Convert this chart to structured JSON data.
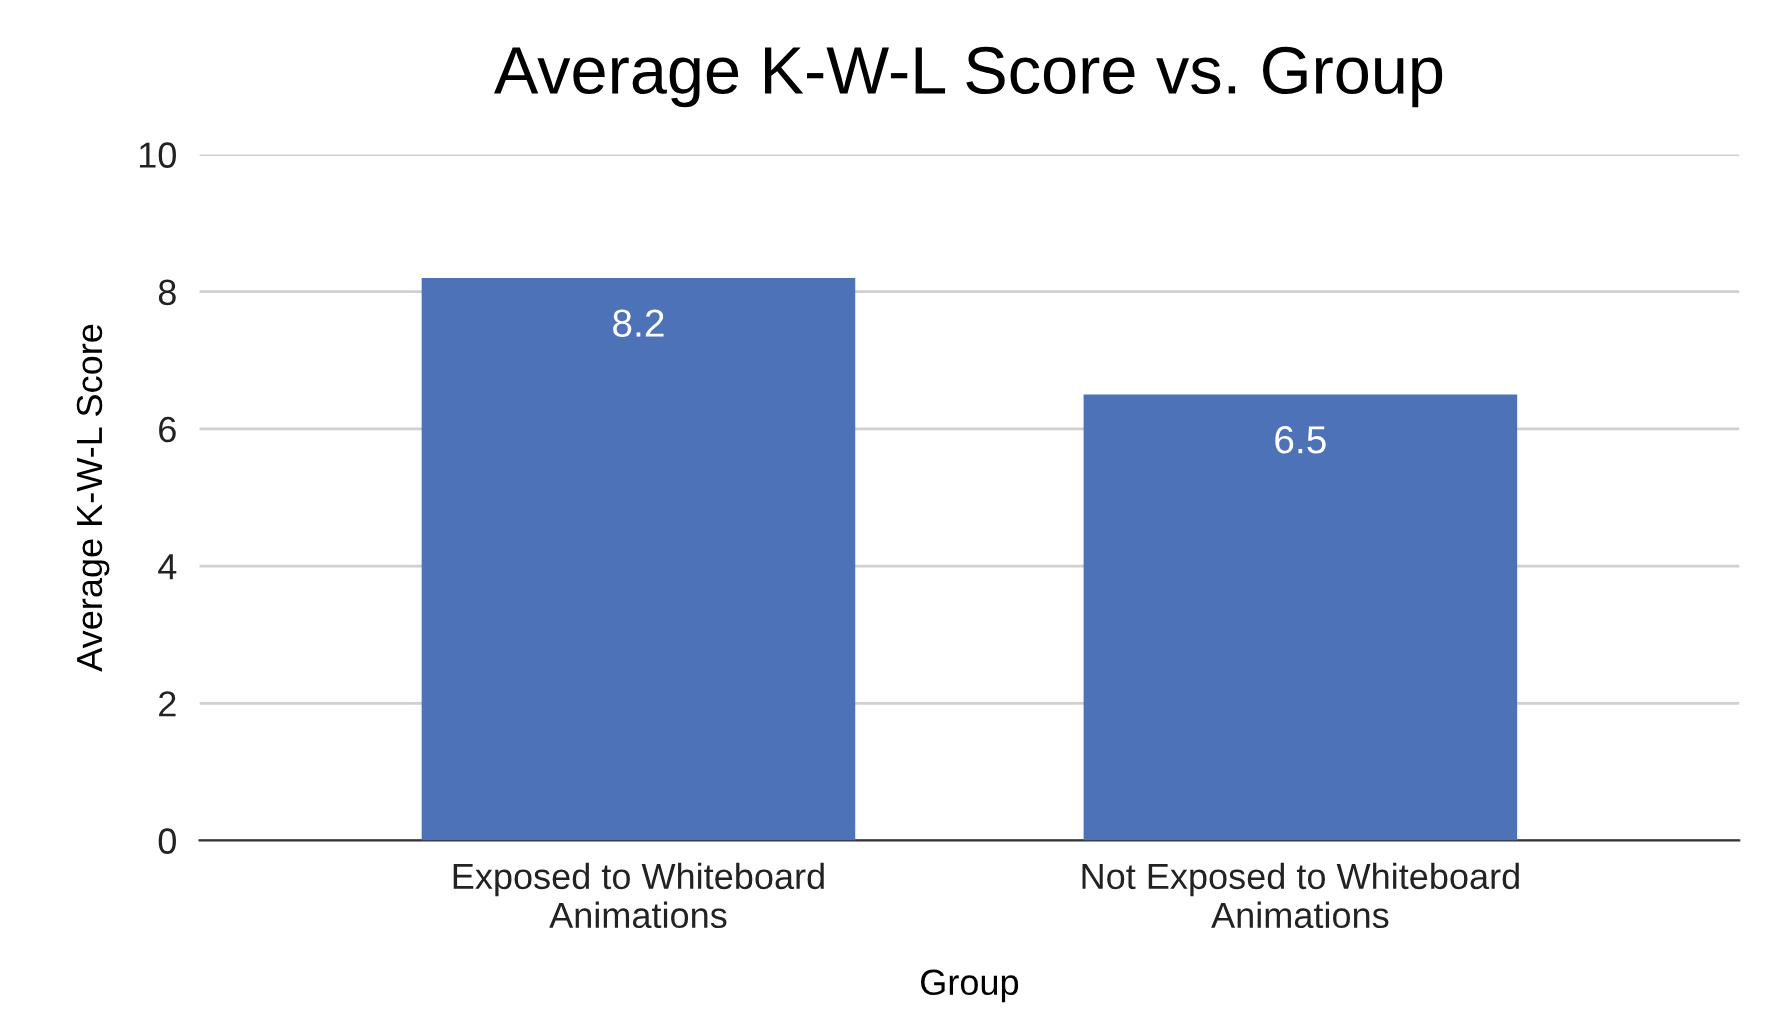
{
  "chart_data": {
    "type": "bar",
    "title": "Average K-W-L Score vs. Group",
    "xlabel": "Group",
    "ylabel": "Average K-W-L Score",
    "categories": [
      "Exposed to Whiteboard\nAnimations",
      "Not Exposed to Whiteboard\nAnimations"
    ],
    "values": [
      8.2,
      6.5
    ],
    "color": "#4e72b8",
    "ylim": [
      0,
      10
    ],
    "yticks": [
      0,
      2,
      4,
      6,
      8,
      10
    ],
    "grid": "y",
    "data_labels": true
  }
}
